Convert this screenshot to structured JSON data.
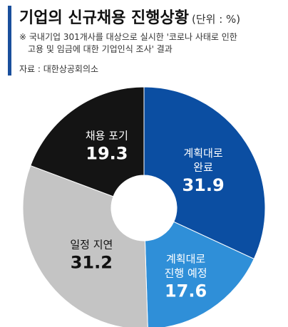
{
  "header": {
    "title": "기업의 신규채용 진행상황",
    "unit": "(단위 : %)",
    "note_line1": "※ 국내기업 301개사를 대상으로 실시한 '코로나 사태로 인한",
    "note_line2": "고용 및 임금에 대한 기업인식 조사' 결과",
    "source": "자료 : 대한상공회의소"
  },
  "chart_data": {
    "type": "pie",
    "donut": true,
    "title": "기업의 신규채용 진행상황",
    "unit": "(단위 : %)",
    "slices": [
      {
        "label_lines": [
          "계획대로",
          "완료"
        ],
        "value": 31.9,
        "color": "#0b4ea2",
        "text_color": "#ffffff"
      },
      {
        "label_lines": [
          "계획대로",
          "진행 예정"
        ],
        "value": 17.6,
        "color": "#2f8fd8",
        "text_color": "#ffffff"
      },
      {
        "label_lines": [
          "일정 지연"
        ],
        "value": 31.2,
        "color": "#c4c4c4",
        "text_color": "#111111"
      },
      {
        "label_lines": [
          "채용 포기"
        ],
        "value": 19.3,
        "color": "#141414",
        "text_color": "#ffffff"
      }
    ],
    "start_angle_deg": 0,
    "direction": "clockwise"
  }
}
